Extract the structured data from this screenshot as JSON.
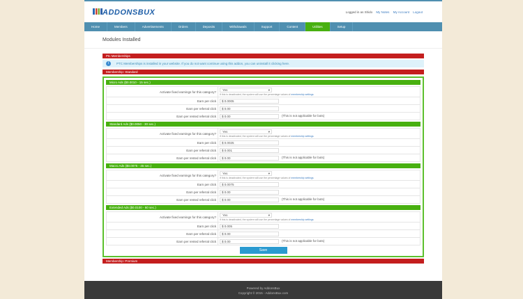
{
  "header": {
    "logo": "ADDONSBUX",
    "logged_in_as": "Logged in as Shido",
    "links": [
      "My Notes",
      "My Account",
      "Logout"
    ]
  },
  "nav": [
    {
      "label": "Home"
    },
    {
      "label": "Members"
    },
    {
      "label": "Advertisements"
    },
    {
      "label": "Orders"
    },
    {
      "label": "Deposits"
    },
    {
      "label": "Withdrawals"
    },
    {
      "label": "Support"
    },
    {
      "label": "Content"
    },
    {
      "label": "Utilities",
      "active": true
    },
    {
      "label": "Setup"
    }
  ],
  "page_title": "Modules Installed",
  "module_bar": "Ptc Memberships",
  "info": "PTC Memberships is installed in your website. If you do not want continue using this addon, you can uninstall it clicking here.",
  "membership_bar": "Membership: Standard",
  "labels": {
    "activate": "Activate fixed earnings for this category?",
    "hint": "If this is deactivated, the system will use the percentage values of",
    "hint_link": "membership settings",
    "epc": "Earn per click",
    "erc": "Earn per referral click",
    "errc": "Earn per rented referral click",
    "note": "(This is not applicable for bots)"
  },
  "sections": [
    {
      "title": "Micro Ads ($0.0010 - 15 sec.)",
      "activate": "Yes",
      "epc": "$ 0.0005",
      "erc": "$ 0.00",
      "errc": "$ 0.00"
    },
    {
      "title": "Standard Ads ($0.0050 - 30 sec.)",
      "activate": "Yes",
      "epc": "$ 0.0025",
      "erc": "$ 0.001",
      "errc": "$ 0.00"
    },
    {
      "title": "Macro Ads ($0.0075 - 45 sec.)",
      "activate": "Yes",
      "epc": "$ 0.0075",
      "erc": "$ 0.00",
      "errc": "$ 0.00"
    },
    {
      "title": "Extended Ads ($0.0100 - 60 sec.)",
      "activate": "Yes",
      "epc": "$ 0.005",
      "erc": "$ 0.00",
      "errc": "$ 0.00"
    }
  ],
  "save_label": "Save",
  "premium_bar": "Membership: Premium",
  "footer": {
    "powered": "Powered by AddonsBux",
    "copyright": "Copyright © 2015 - AddonsBux.com"
  },
  "colors": {
    "nav": "#4f8fb0",
    "active": "#48b010",
    "red": "#c41e1e",
    "save": "#2a9ad0"
  }
}
